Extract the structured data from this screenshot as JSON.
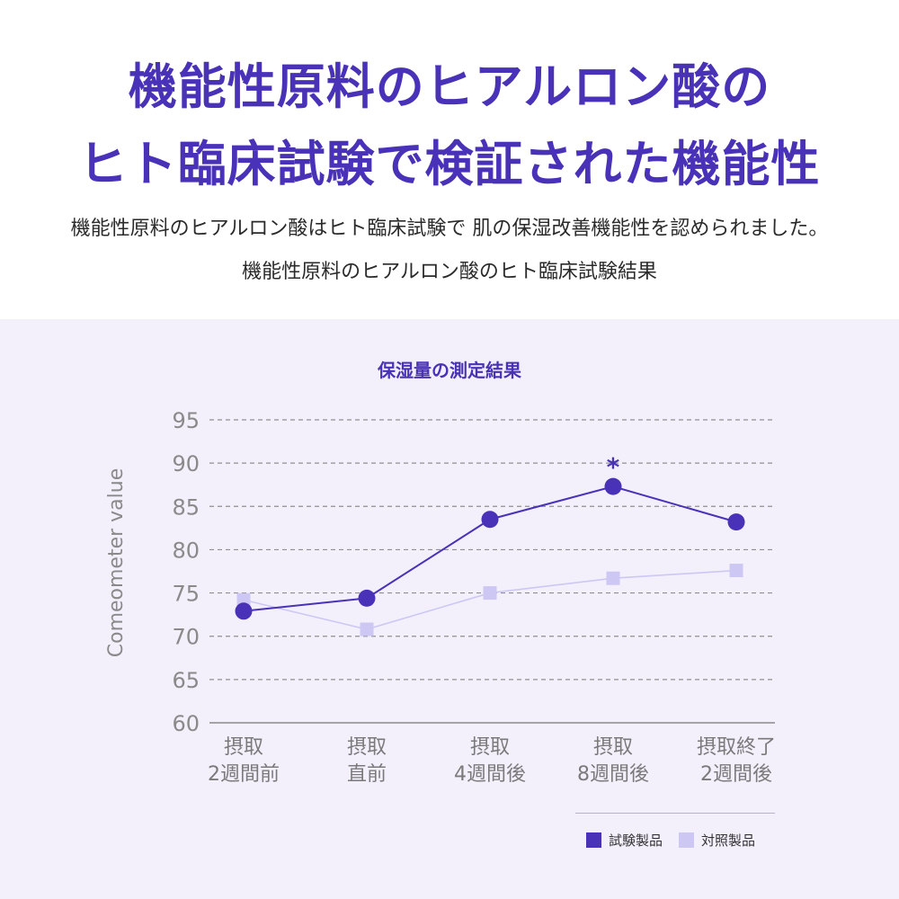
{
  "header": {
    "headline_line1": "機能性原料のヒアルロン酸の",
    "headline_line2": "ヒト臨床試験で検証された機能性",
    "description": "機能性原料のヒアルロン酸はヒト臨床試験で 肌の保湿改善機能性を認められました。",
    "result_caption": "機能性原料のヒアルロン酸のヒト臨床試験結果"
  },
  "colors": {
    "accent": "#4a32b8",
    "test_series": "#4a32b8",
    "control_series": "#cdc7f4",
    "panel_background": "#f3f0fc"
  },
  "chart_data": {
    "type": "line",
    "title": "保湿量の測定結果",
    "ylabel": "Comeometer value",
    "xlabel": "",
    "ylim": [
      60,
      95
    ],
    "yticks": [
      95,
      90,
      85,
      80,
      75,
      70,
      65,
      60
    ],
    "grid": true,
    "legend_position": "bottom-right",
    "categories": [
      [
        "摂取",
        "2週間前"
      ],
      [
        "摂取",
        "直前"
      ],
      [
        "摂取",
        "4週間後"
      ],
      [
        "摂取",
        "8週間後"
      ],
      [
        "摂取終了",
        "2週間後"
      ]
    ],
    "series": [
      {
        "name": "試験製品",
        "marker": "circle",
        "color": "#4a32b8",
        "values": [
          72.9,
          74.4,
          83.5,
          87.3,
          83.2
        ]
      },
      {
        "name": "対照製品",
        "marker": "square",
        "color": "#cdc7f4",
        "values": [
          74.2,
          70.8,
          75.0,
          76.7,
          77.6
        ]
      }
    ],
    "annotations": [
      {
        "text": "*",
        "category_index": 3,
        "series": "試験製品"
      }
    ]
  }
}
